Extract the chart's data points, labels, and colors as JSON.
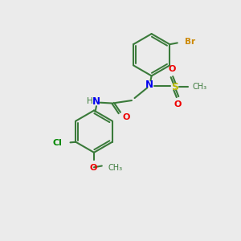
{
  "background_color": "#ebebeb",
  "bond_color": "#3a7a3a",
  "atom_colors": {
    "N": "#0000ee",
    "O": "#ee0000",
    "S": "#bbbb00",
    "Br": "#cc8800",
    "Cl": "#008800",
    "C": "#3a7a3a",
    "H": "#3a7a3a"
  },
  "figsize": [
    3.0,
    3.0
  ],
  "dpi": 100
}
